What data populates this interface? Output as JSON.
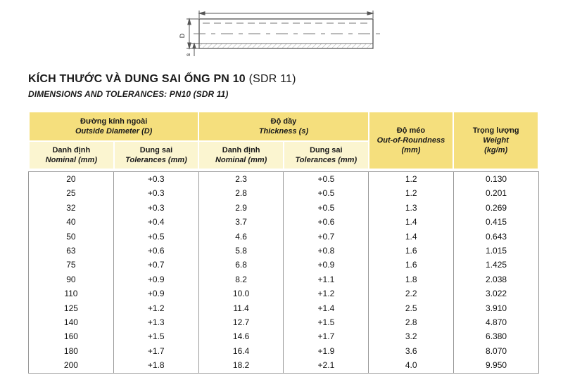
{
  "diagram": {
    "d_label": "D",
    "s_label": "s"
  },
  "title": {
    "main": "KÍCH THƯỚC VÀ DUNG SAI ỐNG PN 10",
    "suffix": " (SDR 11)",
    "subtitle": "DIMENSIONS AND TOLERANCES: PN10 (SDR 11)"
  },
  "table": {
    "colors": {
      "header_dark": "#f5df7d",
      "header_light": "#fbf5d0",
      "border": "#9a9a9a"
    },
    "groups": [
      {
        "vi": "Đường kính ngoài",
        "en": "Outside Diameter (D)"
      },
      {
        "vi": "Độ dầy",
        "en": "Thickness (s)"
      }
    ],
    "sub_headers": [
      {
        "vi": "Danh định",
        "en": "Nominal (mm)"
      },
      {
        "vi": "Dung sai",
        "en": "Tolerances (mm)"
      },
      {
        "vi": "Danh định",
        "en": "Nominal (mm)"
      },
      {
        "vi": "Dung sai",
        "en": "Tolerances (mm)"
      }
    ],
    "span_headers": [
      {
        "vi": "Độ méo",
        "en": "Out-of-Roundness",
        "unit": "(mm)"
      },
      {
        "vi": "Trọng lượng",
        "en": "Weight",
        "unit": "(kg/m)"
      }
    ],
    "rows": [
      [
        "20",
        "+0.3",
        "2.3",
        "+0.5",
        "1.2",
        "0.130"
      ],
      [
        "25",
        "+0.3",
        "2.8",
        "+0.5",
        "1.2",
        "0.201"
      ],
      [
        "32",
        "+0.3",
        "2.9",
        "+0.5",
        "1.3",
        "0.269"
      ],
      [
        "40",
        "+0.4",
        "3.7",
        "+0.6",
        "1.4",
        "0.415"
      ],
      [
        "50",
        "+0.5",
        "4.6",
        "+0.7",
        "1.4",
        "0.643"
      ],
      [
        "63",
        "+0.6",
        "5.8",
        "+0.8",
        "1.6",
        "1.015"
      ],
      [
        "75",
        "+0.7",
        "6.8",
        "+0.9",
        "1.6",
        "1.425"
      ],
      [
        "90",
        "+0.9",
        "8.2",
        "+1.1",
        "1.8",
        "2.038"
      ],
      [
        "110",
        "+0.9",
        "10.0",
        "+1.2",
        "2.2",
        "3.022"
      ],
      [
        "125",
        "+1.2",
        "11.4",
        "+1.4",
        "2.5",
        "3.910"
      ],
      [
        "140",
        "+1.3",
        "12.7",
        "+1.5",
        "2.8",
        "4.870"
      ],
      [
        "160",
        "+1.5",
        "14.6",
        "+1.7",
        "3.2",
        "6.380"
      ],
      [
        "180",
        "+1.7",
        "16.4",
        "+1.9",
        "3.6",
        "8.070"
      ],
      [
        "200",
        "+1.8",
        "18.2",
        "+2.1",
        "4.0",
        "9.950"
      ]
    ]
  }
}
